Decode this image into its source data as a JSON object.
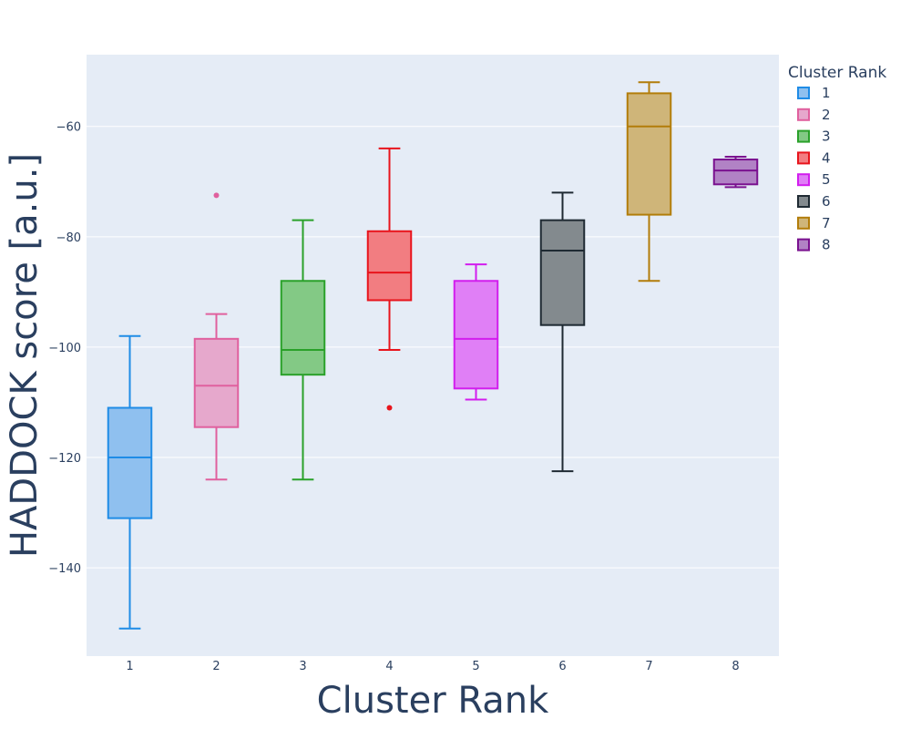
{
  "chart_data": {
    "type": "box",
    "xlabel": "Cluster Rank",
    "ylabel": "HADDOCK score [a.u.]",
    "ylim": [
      -156,
      -47
    ],
    "yticks": [
      -60,
      -80,
      -100,
      -120,
      -140
    ],
    "ytick_labels": [
      "−60",
      "−80",
      "−100",
      "−120",
      "−140"
    ],
    "categories": [
      "1",
      "2",
      "3",
      "4",
      "5",
      "6",
      "7",
      "8"
    ],
    "grid": true,
    "legend": {
      "title": "Cluster Rank",
      "placement": "right"
    },
    "series": [
      {
        "name": "1",
        "color": "#1f8ce6",
        "fill": "#8fc0ef",
        "min": -151,
        "q1": -131,
        "median": -120,
        "q3": -111,
        "max": -98,
        "outliers": []
      },
      {
        "name": "2",
        "color": "#e0609e",
        "fill": "#e6a8cc",
        "min": -124,
        "q1": -114.5,
        "median": -107,
        "q3": -98.5,
        "max": -94,
        "outliers": [
          -72.5
        ]
      },
      {
        "name": "3",
        "color": "#2aa12a",
        "fill": "#83c985",
        "min": -124,
        "q1": -105,
        "median": -100.5,
        "q3": -88,
        "max": -77,
        "outliers": []
      },
      {
        "name": "4",
        "color": "#e8141c",
        "fill": "#f27d81",
        "min": -100.5,
        "q1": -91.5,
        "median": -86.5,
        "q3": -79,
        "max": -64,
        "outliers": [
          -111
        ]
      },
      {
        "name": "5",
        "color": "#d21dee",
        "fill": "#e07ff6",
        "min": -109.5,
        "q1": -107.5,
        "median": -98.5,
        "q3": -88,
        "max": -85,
        "outliers": []
      },
      {
        "name": "6",
        "color": "#1f2a33",
        "fill": "#838a8e",
        "min": -122.5,
        "q1": -96,
        "median": -82.5,
        "q3": -77,
        "max": -72,
        "outliers": []
      },
      {
        "name": "7",
        "color": "#b27d0a",
        "fill": "#cfb579",
        "min": -88,
        "q1": -76,
        "median": -60,
        "q3": -54,
        "max": -52,
        "outliers": []
      },
      {
        "name": "8",
        "color": "#7a118f",
        "fill": "#b182c5",
        "min": -71,
        "q1": -70.5,
        "median": -68,
        "q3": -66,
        "max": -65.5,
        "outliers": []
      }
    ]
  }
}
